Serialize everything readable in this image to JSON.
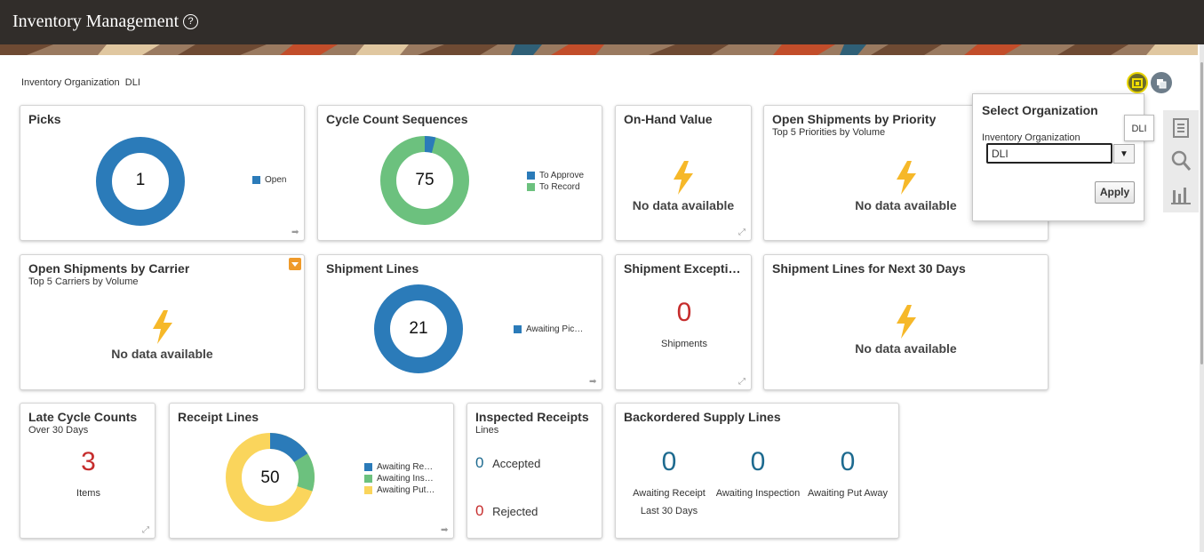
{
  "app": {
    "title": "Inventory Management",
    "help_icon": "help-circle-icon"
  },
  "context": {
    "org_label": "Inventory Organization",
    "org_value": "DLI"
  },
  "colors": {
    "blue": "#2b7bb9",
    "green": "#6cc17e",
    "yellow": "#fad55c",
    "red": "#c62d2d",
    "teal": "#1d6a8f"
  },
  "tiles": {
    "picks": {
      "title": "Picks",
      "center": "1",
      "legend": [
        "Open"
      ]
    },
    "cycle": {
      "title": "Cycle Count Sequences",
      "center": "75",
      "legend": [
        "To Approve",
        "To Record"
      ]
    },
    "onhand": {
      "title": "On-Hand Value",
      "nodata": "No data available"
    },
    "priority": {
      "title": "Open Shipments by Priority",
      "subtitle": "Top 5 Priorities by Volume",
      "nodata": "No data available"
    },
    "carrier": {
      "title": "Open Shipments by Carrier",
      "subtitle": "Top 5 Carriers by Volume",
      "nodata": "No data available"
    },
    "shiplines": {
      "title": "Shipment Lines",
      "center": "21",
      "legend": [
        "Awaiting Pic…"
      ]
    },
    "exceptions": {
      "title": "Shipment Excepti…",
      "value": "0",
      "caption": "Shipments"
    },
    "next30": {
      "title": "Shipment Lines for Next 30 Days",
      "nodata": "No data available"
    },
    "latecc": {
      "title": "Late Cycle Counts",
      "subtitle": "Over 30 Days",
      "value": "3",
      "caption": "Items"
    },
    "receipt": {
      "title": "Receipt Lines",
      "center": "50",
      "legend": [
        "Awaiting Re…",
        "Awaiting Ins…",
        "Awaiting Put…"
      ]
    },
    "inspected": {
      "title": "Inspected Receipts",
      "subtitle": "Lines",
      "accepted_value": "0",
      "accepted_label": "Accepted",
      "rejected_value": "0",
      "rejected_label": "Rejected"
    },
    "backorder": {
      "title": "Backordered Supply Lines",
      "items": [
        {
          "value": "0",
          "label": "Awaiting Receipt"
        },
        {
          "value": "0",
          "label": "Awaiting Inspection"
        },
        {
          "value": "0",
          "label": "Awaiting Put Away"
        }
      ],
      "footnote": "Last 30 Days"
    }
  },
  "chart_data": [
    {
      "type": "pie",
      "title": "Picks",
      "categories": [
        "Open"
      ],
      "values": [
        1
      ]
    },
    {
      "type": "pie",
      "title": "Cycle Count Sequences",
      "categories": [
        "To Approve",
        "To Record"
      ],
      "values": [
        3,
        72
      ]
    },
    {
      "type": "pie",
      "title": "Shipment Lines",
      "categories": [
        "Awaiting Pic…"
      ],
      "values": [
        21
      ]
    },
    {
      "type": "pie",
      "title": "Receipt Lines",
      "categories": [
        "Awaiting Re…",
        "Awaiting Ins…",
        "Awaiting Put…"
      ],
      "values": [
        8,
        7,
        35
      ]
    }
  ],
  "popup": {
    "title": "Select Organization",
    "field_label": "Inventory Organization",
    "value": "DLI",
    "apply": "Apply",
    "tooltip": "DLI"
  }
}
